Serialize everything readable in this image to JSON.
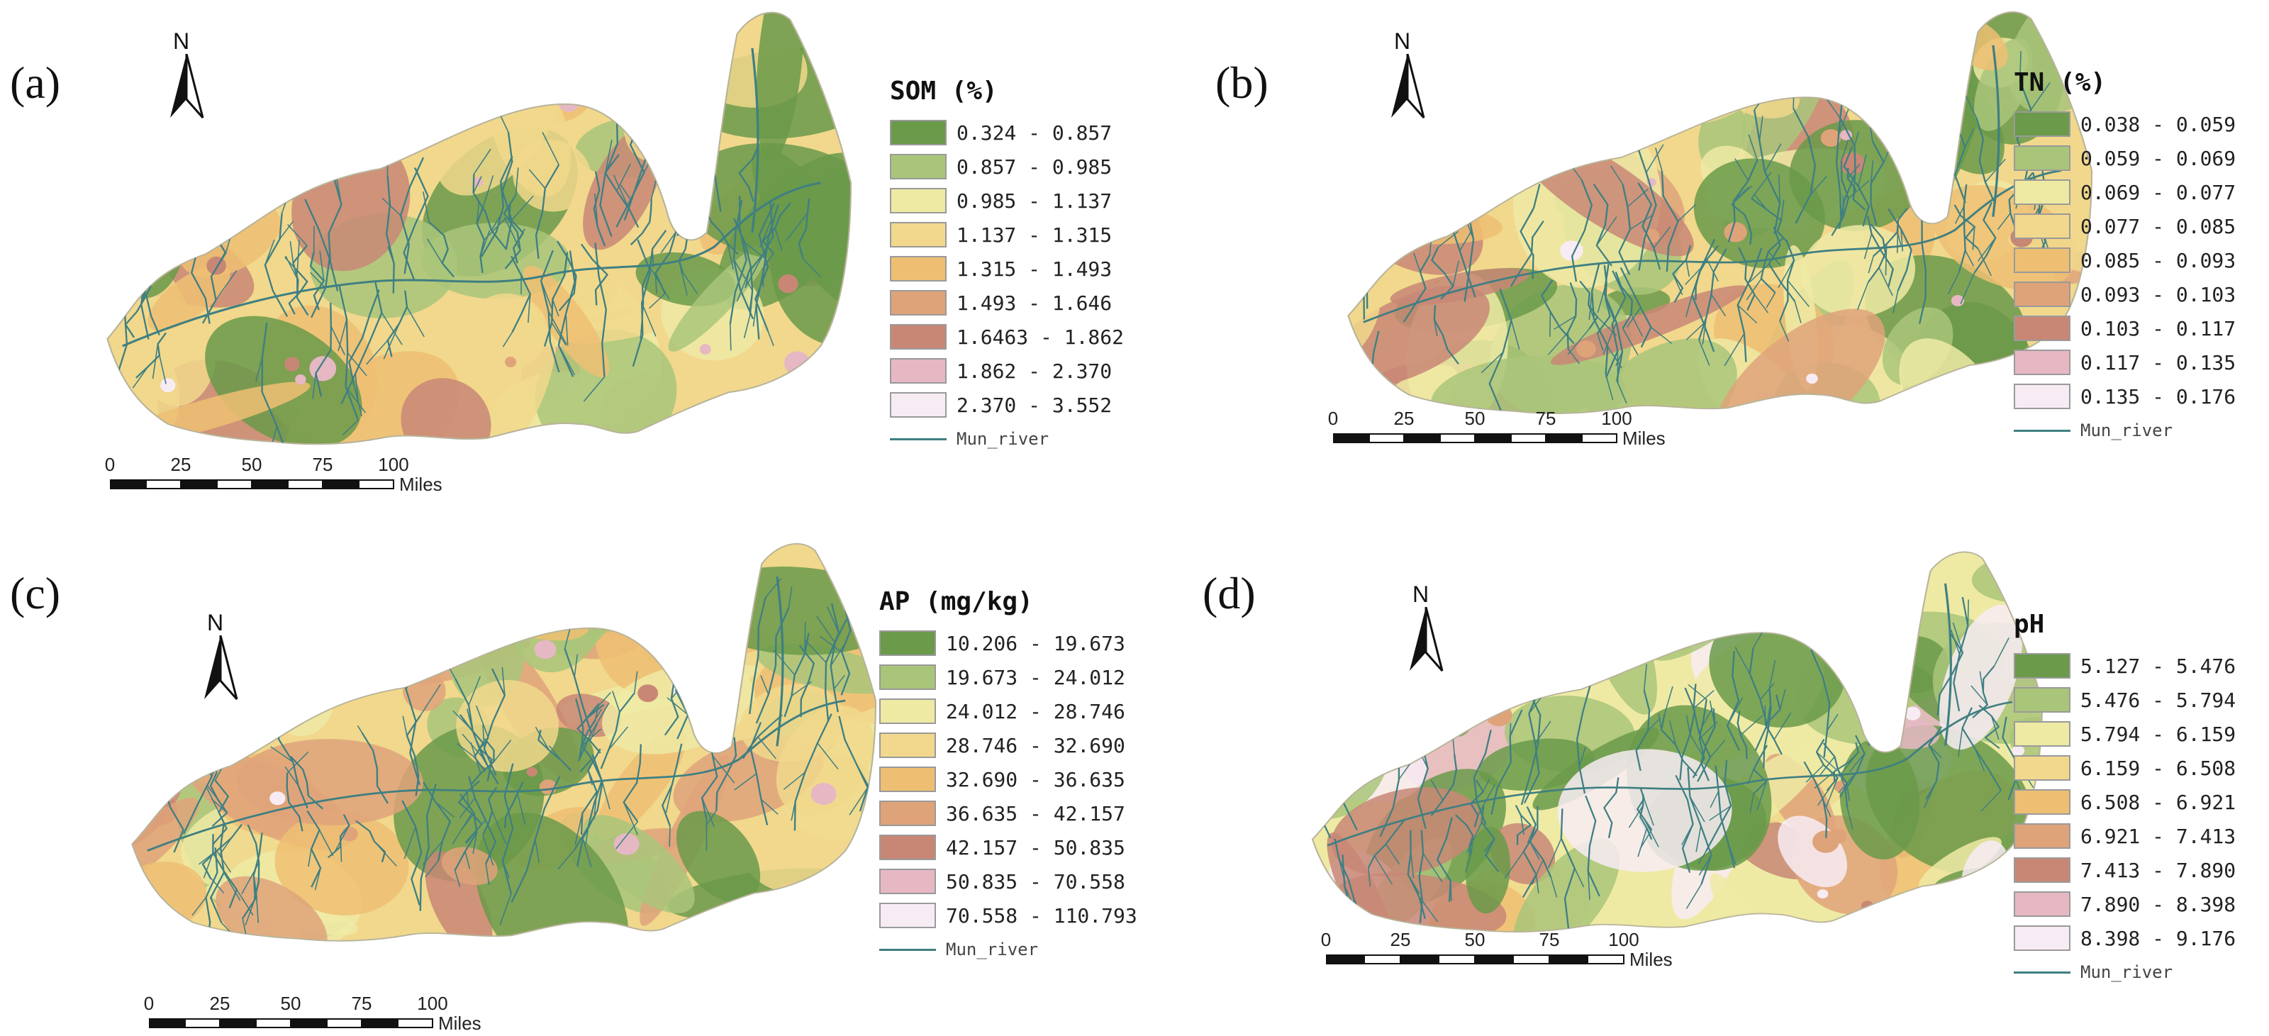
{
  "panels": [
    {
      "label": "(a)",
      "legend_title": "SOM (%)",
      "classes": [
        {
          "range": "0.324 - 0.857",
          "color": "#6a9a4a"
        },
        {
          "range": "0.857 - 0.985",
          "color": "#a9c57a"
        },
        {
          "range": "0.985 - 1.137",
          "color": "#eeeaa4"
        },
        {
          "range": "1.137 - 1.315",
          "color": "#f1d88c"
        },
        {
          "range": "1.315 - 1.493",
          "color": "#eebf73"
        },
        {
          "range": "1.493 - 1.646",
          "color": "#dfa37a"
        },
        {
          "range": "1.6463 - 1.862",
          "color": "#c88775"
        },
        {
          "range": "1.862 - 2.370",
          "color": "#e6b8c4"
        },
        {
          "range": "2.370 - 3.552",
          "color": "#f8ecf4"
        }
      ],
      "river_label": "Mun_river",
      "north": "N",
      "scale": {
        "ticks": [
          "0",
          "25",
          "50",
          "75",
          "100"
        ],
        "unit": "Miles"
      }
    },
    {
      "label": "(b)",
      "legend_title": "TN (%)",
      "classes": [
        {
          "range": "0.038 - 0.059",
          "color": "#6a9a4a"
        },
        {
          "range": "0.059 - 0.069",
          "color": "#a9c57a"
        },
        {
          "range": "0.069 - 0.077",
          "color": "#eeeaa4"
        },
        {
          "range": "0.077 - 0.085",
          "color": "#f1d88c"
        },
        {
          "range": "0.085 - 0.093",
          "color": "#eebf73"
        },
        {
          "range": "0.093 - 0.103",
          "color": "#dfa37a"
        },
        {
          "range": "0.103 - 0.117",
          "color": "#c88775"
        },
        {
          "range": "0.117 - 0.135",
          "color": "#e6b8c4"
        },
        {
          "range": "0.135 - 0.176",
          "color": "#f8ecf4"
        }
      ],
      "river_label": "Mun_river",
      "north": "N",
      "scale": {
        "ticks": [
          "0",
          "25",
          "50",
          "75",
          "100"
        ],
        "unit": "Miles"
      }
    },
    {
      "label": "(c)",
      "legend_title": "AP (mg/kg)",
      "classes": [
        {
          "range": "10.206 - 19.673",
          "color": "#6a9a4a"
        },
        {
          "range": "19.673 - 24.012",
          "color": "#a9c57a"
        },
        {
          "range": "24.012 - 28.746",
          "color": "#eeeaa4"
        },
        {
          "range": "28.746 - 32.690",
          "color": "#f1d88c"
        },
        {
          "range": "32.690 - 36.635",
          "color": "#eebf73"
        },
        {
          "range": "36.635 - 42.157",
          "color": "#dfa37a"
        },
        {
          "range": "42.157 - 50.835",
          "color": "#c88775"
        },
        {
          "range": "50.835 - 70.558",
          "color": "#e6b8c4"
        },
        {
          "range": "70.558 - 110.793",
          "color": "#f8ecf4"
        }
      ],
      "river_label": "Mun_river",
      "north": "N",
      "scale": {
        "ticks": [
          "0",
          "25",
          "50",
          "75",
          "100"
        ],
        "unit": "Miles"
      }
    },
    {
      "label": "(d)",
      "legend_title": "pH",
      "classes": [
        {
          "range": "5.127 - 5.476",
          "color": "#6a9a4a"
        },
        {
          "range": "5.476 - 5.794",
          "color": "#a9c57a"
        },
        {
          "range": "5.794 - 6.159",
          "color": "#eeeaa4"
        },
        {
          "range": "6.159 - 6.508",
          "color": "#f1d88c"
        },
        {
          "range": "6.508 - 6.921",
          "color": "#eebf73"
        },
        {
          "range": "6.921 - 7.413",
          "color": "#dfa37a"
        },
        {
          "range": "7.413 - 7.890",
          "color": "#c88775"
        },
        {
          "range": "7.890 - 8.398",
          "color": "#e6b8c4"
        },
        {
          "range": "8.398 - 9.176",
          "color": "#f8ecf4"
        }
      ],
      "river_label": "Mun_river",
      "north": "N",
      "scale": {
        "ticks": [
          "0",
          "25",
          "50",
          "75",
          "100"
        ],
        "unit": "Miles"
      }
    }
  ],
  "river_color": "#3f7f82"
}
